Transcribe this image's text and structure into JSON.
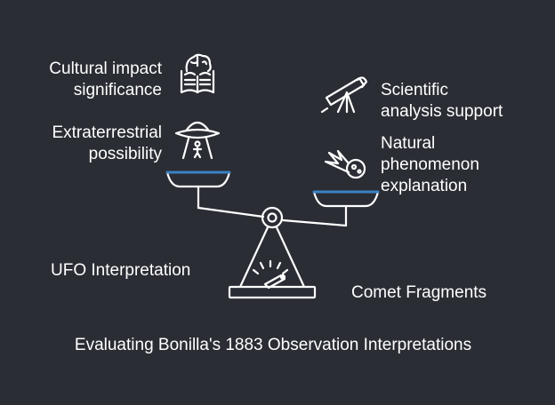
{
  "title": "Evaluating Bonilla's 1883 Observation Interpretations",
  "left_side": {
    "label": "UFO Interpretation",
    "items": [
      {
        "lines": [
          "Cultural impact",
          "significance"
        ],
        "icon": "book-brain-icon"
      },
      {
        "lines": [
          "Extraterrestrial",
          "possibility"
        ],
        "icon": "ufo-abduction-icon"
      }
    ]
  },
  "right_side": {
    "label": "Comet Fragments",
    "items": [
      {
        "lines": [
          "Scientific",
          "analysis support"
        ],
        "icon": "telescope-icon"
      },
      {
        "lines": [
          "Natural",
          "phenomenon",
          "explanation"
        ],
        "icon": "comet-icon"
      }
    ]
  },
  "colors": {
    "background": "#2a2d34",
    "pan_accent": "#3b82c4",
    "stroke": "#ffffff"
  }
}
